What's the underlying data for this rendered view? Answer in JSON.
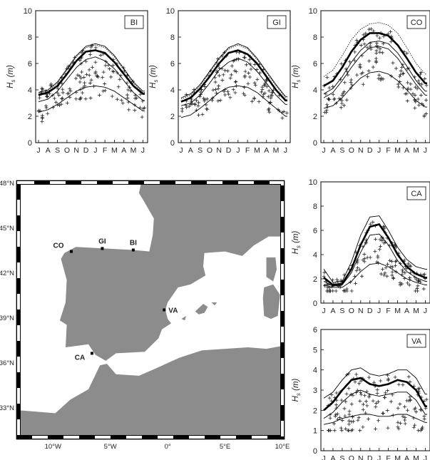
{
  "chart_data": [
    {
      "type": "line",
      "panel": "BI",
      "ylabel": "H_s (m)",
      "ylim": [
        0,
        10
      ],
      "yticks": [
        0,
        2,
        4,
        6,
        8,
        10
      ],
      "x_tick_labels": [
        "J",
        "A",
        "S",
        "O",
        "N",
        "D",
        "J",
        "F",
        "M",
        "A",
        "M",
        "J"
      ],
      "series": [
        {
          "role": "upper-thin",
          "values": [
            3.8,
            4.0,
            4.6,
            5.6,
            6.6,
            7.3,
            7.5,
            7.3,
            6.6,
            5.6,
            4.6,
            3.9
          ]
        },
        {
          "role": "dotted",
          "values": [
            3.7,
            3.9,
            4.5,
            5.5,
            6.5,
            7.2,
            7.4,
            7.2,
            6.5,
            5.5,
            4.5,
            3.8
          ]
        },
        {
          "role": "median-thick",
          "values": [
            3.6,
            3.8,
            4.3,
            5.2,
            6.2,
            6.9,
            7.0,
            6.8,
            6.1,
            5.2,
            4.3,
            3.7
          ]
        },
        {
          "role": "middle-thin",
          "values": [
            3.1,
            3.3,
            3.9,
            4.8,
            5.7,
            6.3,
            6.5,
            6.2,
            5.6,
            4.7,
            3.8,
            3.2
          ]
        },
        {
          "role": "lower-thin",
          "values": [
            2.3,
            2.5,
            2.9,
            3.4,
            3.9,
            4.2,
            4.3,
            4.2,
            3.9,
            3.4,
            2.9,
            2.4
          ]
        }
      ],
      "scatter_range": [
        1.6,
        8.1
      ]
    },
    {
      "type": "line",
      "panel": "GI",
      "ylabel": "H_s (m)",
      "ylim": [
        0,
        10
      ],
      "yticks": [
        0,
        2,
        4,
        6,
        8,
        10
      ],
      "x_tick_labels": [
        "J",
        "A",
        "S",
        "O",
        "N",
        "D",
        "J",
        "F",
        "M",
        "A",
        "M",
        "J"
      ],
      "series": [
        {
          "role": "upper-thin",
          "values": [
            3.4,
            3.7,
            4.4,
            5.4,
            6.4,
            7.2,
            7.5,
            7.2,
            6.4,
            5.4,
            4.4,
            3.5
          ]
        },
        {
          "role": "dotted",
          "values": [
            3.3,
            3.6,
            4.3,
            5.3,
            6.3,
            7.1,
            7.4,
            7.1,
            6.3,
            5.3,
            4.3,
            3.4
          ]
        },
        {
          "role": "median-thick",
          "values": [
            3.1,
            3.4,
            4.1,
            5.0,
            6.0,
            6.8,
            7.0,
            6.7,
            6.0,
            5.0,
            4.0,
            3.2
          ]
        },
        {
          "role": "middle-thin",
          "values": [
            2.8,
            3.0,
            3.6,
            4.5,
            5.5,
            6.1,
            6.4,
            6.1,
            5.4,
            4.5,
            3.6,
            2.9
          ]
        },
        {
          "role": "lower-thin",
          "values": [
            1.9,
            2.1,
            2.6,
            3.2,
            3.8,
            4.2,
            4.3,
            4.2,
            3.8,
            3.2,
            2.6,
            2.0
          ]
        }
      ],
      "scatter_range": [
        1.4,
        7.2
      ]
    },
    {
      "type": "line",
      "panel": "CO",
      "ylabel": "H_s (m)",
      "ylim": [
        0,
        10
      ],
      "yticks": [
        0,
        2,
        4,
        6,
        8,
        10
      ],
      "x_tick_labels": [
        "J",
        "A",
        "S",
        "O",
        "N",
        "D",
        "J",
        "F",
        "M",
        "A",
        "M",
        "J"
      ],
      "series": [
        {
          "role": "dotted",
          "values": [
            5.0,
            5.5,
            6.6,
            7.8,
            8.6,
            9.0,
            9.1,
            8.9,
            8.3,
            7.2,
            6.0,
            5.2
          ]
        },
        {
          "role": "median-thick",
          "values": [
            4.3,
            4.7,
            5.7,
            6.9,
            7.8,
            8.3,
            8.3,
            8.1,
            7.4,
            6.4,
            5.3,
            4.5
          ]
        },
        {
          "role": "upper-thin",
          "values": [
            3.7,
            4.1,
            5.0,
            6.1,
            7.0,
            7.6,
            7.7,
            7.5,
            6.8,
            5.8,
            4.7,
            3.9
          ]
        },
        {
          "role": "middle-thin",
          "values": [
            3.4,
            3.8,
            4.7,
            5.7,
            6.6,
            7.2,
            7.3,
            7.1,
            6.4,
            5.4,
            4.4,
            3.6
          ]
        },
        {
          "role": "lower-thin",
          "values": [
            2.6,
            2.8,
            3.4,
            4.2,
            4.9,
            5.3,
            5.4,
            5.2,
            4.7,
            4.0,
            3.2,
            2.7
          ]
        }
      ],
      "scatter_range": [
        1.8,
        9.4
      ]
    },
    {
      "type": "line",
      "panel": "CA",
      "ylabel": "H_s (m)",
      "ylim": [
        0,
        10
      ],
      "yticks": [
        0,
        2,
        4,
        6,
        8,
        10
      ],
      "x_tick_labels": [
        "J",
        "A",
        "S",
        "O",
        "N",
        "D",
        "J",
        "F",
        "M",
        "A",
        "M",
        "J"
      ],
      "series": [
        {
          "role": "upper-thin",
          "values": [
            2.8,
            1.7,
            1.8,
            3.4,
            5.6,
            7.1,
            7.2,
            6.0,
            4.6,
            3.6,
            3.0,
            2.8
          ]
        },
        {
          "role": "median-thick",
          "values": [
            2.1,
            1.5,
            1.6,
            2.8,
            4.8,
            6.3,
            6.5,
            5.4,
            4.0,
            3.0,
            2.4,
            2.1
          ]
        },
        {
          "role": "middle-thin",
          "values": [
            1.8,
            1.4,
            1.5,
            2.5,
            4.2,
            5.6,
            5.7,
            4.8,
            3.5,
            2.6,
            2.1,
            1.8
          ]
        },
        {
          "role": "lower-thin",
          "values": [
            1.5,
            1.3,
            1.3,
            1.8,
            2.6,
            3.2,
            3.3,
            3.0,
            2.5,
            2.0,
            1.7,
            1.5
          ]
        }
      ],
      "scatter_range": [
        1.0,
        7.5
      ]
    },
    {
      "type": "line",
      "panel": "VA",
      "ylabel": "H_s (m)",
      "ylim": [
        0,
        6
      ],
      "yticks": [
        0,
        1,
        2,
        3,
        4,
        5,
        6
      ],
      "x_tick_labels": [
        "J",
        "A",
        "S",
        "O",
        "N",
        "D",
        "J",
        "F",
        "M",
        "A",
        "M",
        "J"
      ],
      "series": [
        {
          "role": "upper-thin",
          "values": [
            2.6,
            2.9,
            3.5,
            4.0,
            4.1,
            3.8,
            3.7,
            3.8,
            4.0,
            4.0,
            3.6,
            2.8
          ]
        },
        {
          "role": "median-thick",
          "values": [
            2.0,
            2.4,
            3.0,
            3.5,
            3.6,
            3.3,
            3.2,
            3.3,
            3.5,
            3.4,
            3.0,
            2.2
          ]
        },
        {
          "role": "middle-thin",
          "values": [
            1.6,
            1.9,
            2.4,
            2.8,
            3.0,
            2.8,
            2.7,
            2.8,
            2.9,
            2.9,
            2.5,
            1.8
          ]
        },
        {
          "role": "lower-thin",
          "values": [
            1.3,
            1.4,
            1.6,
            1.7,
            1.8,
            1.8,
            1.7,
            1.7,
            1.8,
            1.8,
            1.6,
            1.4
          ]
        }
      ],
      "scatter_range": [
        1.0,
        4.5
      ]
    }
  ],
  "map": {
    "lat_ticks": [
      "48°N",
      "45°N",
      "42°N",
      "39°N",
      "36°N",
      "33°N"
    ],
    "lon_ticks": [
      "10°W",
      "5°W",
      "0°",
      "5°E",
      "10°E"
    ],
    "xlim": [
      -13,
      10
    ],
    "ylim": [
      31,
      48
    ],
    "colors": {
      "land": "#8c8c8c",
      "sea": "#ffffff"
    },
    "stations": [
      {
        "name": "CO",
        "lon": -8.4,
        "lat": 43.4
      },
      {
        "name": "GI",
        "lon": -5.7,
        "lat": 43.6
      },
      {
        "name": "BI",
        "lon": -3.0,
        "lat": 43.5
      },
      {
        "name": "VA",
        "lon": -0.3,
        "lat": 39.5
      },
      {
        "name": "CA",
        "lon": -6.6,
        "lat": 36.6
      }
    ]
  }
}
